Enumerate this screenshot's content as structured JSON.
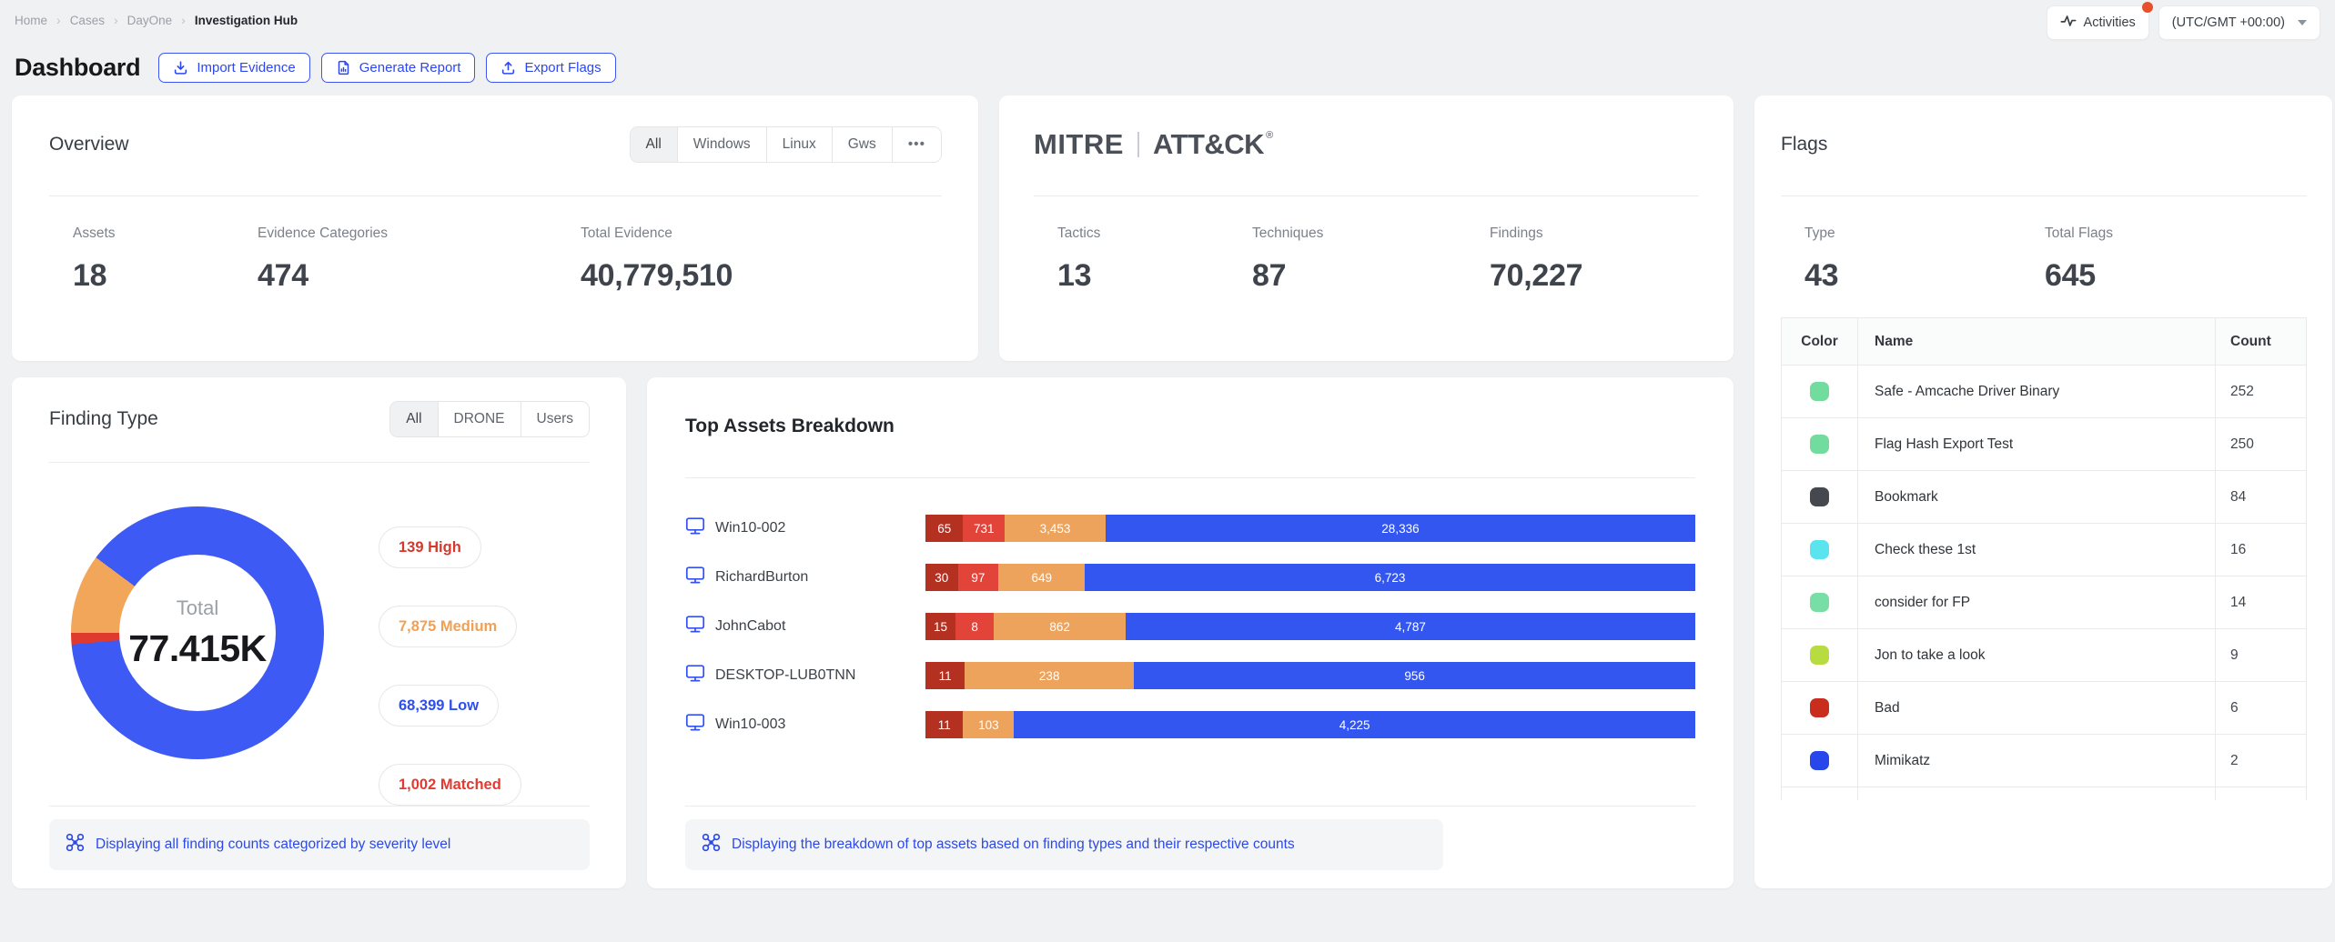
{
  "breadcrumb": {
    "separator": "›",
    "items": [
      "Home",
      "Cases",
      "DayOne"
    ],
    "current": "Investigation Hub"
  },
  "topbar": {
    "activities": "Activities",
    "timezone": "(UTC/GMT +00:00)"
  },
  "header": {
    "title": "Dashboard",
    "actions": [
      {
        "id": "import-evidence",
        "icon": "import",
        "label": "Import Evidence"
      },
      {
        "id": "generate-report",
        "icon": "report",
        "label": "Generate Report"
      },
      {
        "id": "export-flags",
        "icon": "export",
        "label": "Export Flags"
      }
    ]
  },
  "colors": {
    "accent": "#3350f0",
    "page_bg": "#f0f1f3",
    "bar_blue": "#3356f0",
    "bar_orange": "#eda35b",
    "bar_red": "#e2443a",
    "bar_dark_red": "#b43122",
    "donut_blue": "#3d5af5",
    "donut_orange": "#f2a65a",
    "donut_red": "#e03a2f"
  },
  "overview": {
    "title": "Overview",
    "tabs": [
      "All",
      "Windows",
      "Linux",
      "Gws",
      "•••"
    ],
    "active_tab": "All",
    "stats": [
      {
        "label": "Assets",
        "value": "18"
      },
      {
        "label": "Evidence Categories",
        "value": "474"
      },
      {
        "label": "Total Evidence",
        "value": "40,779,510"
      }
    ]
  },
  "mitre": {
    "logo_left": "MITRE",
    "logo_right": "ATT&CK",
    "reg_mark": "®",
    "stats": [
      {
        "label": "Tactics",
        "value": "13"
      },
      {
        "label": "Techniques",
        "value": "87"
      },
      {
        "label": "Findings",
        "value": "70,227"
      }
    ]
  },
  "flags": {
    "title": "Flags",
    "stats": [
      {
        "label": "Type",
        "value": "43"
      },
      {
        "label": "Total Flags",
        "value": "645"
      }
    ],
    "table": {
      "columns": [
        "Color",
        "Name",
        "Count"
      ],
      "rows": [
        {
          "color": "#71dc9e",
          "name": "Safe - Amcache Driver Binary",
          "count": "252"
        },
        {
          "color": "#71dc9e",
          "name": "Flag Hash Export Test",
          "count": "250"
        },
        {
          "color": "#45484f",
          "name": "Bookmark",
          "count": "84"
        },
        {
          "color": "#59e4f0",
          "name": "Check these 1st",
          "count": "16"
        },
        {
          "color": "#77dea6",
          "name": "consider for FP",
          "count": "14"
        },
        {
          "color": "#b7db40",
          "name": "Jon to take a look",
          "count": "9"
        },
        {
          "color": "#c92d1e",
          "name": "Bad",
          "count": "6"
        },
        {
          "color": "#2746ec",
          "name": "Mimikatz",
          "count": "2"
        }
      ]
    }
  },
  "finding_type": {
    "title": "Finding Type",
    "tabs": [
      "All",
      "DRONE",
      "Users"
    ],
    "active_tab": "All",
    "donut": {
      "start_angle_deg": 270,
      "segments": [
        {
          "label": "Medium",
          "color": "#f2a65a",
          "sweep": 36.6
        },
        {
          "label": "Low",
          "color": "#3d5af5",
          "sweep": 318.05
        },
        {
          "label": "Matched",
          "color": "#e03a2f",
          "sweep": 4.66
        },
        {
          "label": "High",
          "color": "#e03a2f",
          "sweep": 0.69
        }
      ],
      "center_label": "Total",
      "center_value": "77.415K"
    },
    "legend": [
      {
        "text": "139 High",
        "color": "#d6382b"
      },
      {
        "text": "7,875 Medium",
        "color": "#f0a155"
      },
      {
        "text": "68,399 Low",
        "color": "#2d4ff0"
      },
      {
        "text": "1,002 Matched",
        "color": "#e23a31"
      }
    ],
    "footer": "Displaying all finding counts categorized by severity level"
  },
  "top_assets": {
    "title": "Top Assets Breakdown",
    "rows": [
      {
        "asset": "Win10-002",
        "segments": [
          {
            "text": "65",
            "pct": 4.9,
            "color": "bar_dark_red"
          },
          {
            "text": "731",
            "pct": 5.4,
            "color": "bar_red"
          },
          {
            "text": "3,453",
            "pct": 13.1,
            "color": "bar_orange"
          },
          {
            "text": "28,336",
            "pct": 76.6,
            "color": "bar_blue"
          }
        ]
      },
      {
        "asset": "RichardBurton",
        "segments": [
          {
            "text": "30",
            "pct": 4.2,
            "color": "bar_dark_red"
          },
          {
            "text": "97",
            "pct": 5.3,
            "color": "bar_red"
          },
          {
            "text": "649",
            "pct": 11.2,
            "color": "bar_orange"
          },
          {
            "text": "6,723",
            "pct": 79.3,
            "color": "bar_blue"
          }
        ]
      },
      {
        "asset": "JohnCabot",
        "segments": [
          {
            "text": "15",
            "pct": 3.9,
            "color": "bar_dark_red"
          },
          {
            "text": "8",
            "pct": 5.0,
            "color": "bar_red"
          },
          {
            "text": "862",
            "pct": 17.1,
            "color": "bar_orange"
          },
          {
            "text": "4,787",
            "pct": 74.0,
            "color": "bar_blue"
          }
        ]
      },
      {
        "asset": "DESKTOP-LUB0TNN",
        "segments": [
          {
            "text": "11",
            "pct": 5.1,
            "color": "bar_dark_red"
          },
          {
            "text": "238",
            "pct": 22.0,
            "color": "bar_orange"
          },
          {
            "text": "956",
            "pct": 72.9,
            "color": "bar_blue"
          }
        ]
      },
      {
        "asset": "Win10-003",
        "segments": [
          {
            "text": "11",
            "pct": 4.9,
            "color": "bar_dark_red"
          },
          {
            "text": "103",
            "pct": 6.6,
            "color": "bar_orange"
          },
          {
            "text": "4,225",
            "pct": 88.5,
            "color": "bar_blue"
          }
        ]
      }
    ],
    "footer": "Displaying the breakdown of top assets based on finding types and their respective counts"
  },
  "chart_data": [
    {
      "type": "pie",
      "title": "Finding Type",
      "categories": [
        "High",
        "Medium",
        "Low",
        "Matched"
      ],
      "values": [
        139,
        7875,
        68399,
        1002
      ],
      "colors": [
        "#e03a2f",
        "#f2a65a",
        "#3d5af5",
        "#e23a31"
      ],
      "center_label": "Total",
      "center_value": "77.415K",
      "legend_position": "right"
    },
    {
      "type": "bar",
      "title": "Top Assets Breakdown",
      "orientation": "horizontal",
      "stacked": true,
      "categories": [
        "Win10-002",
        "RichardBurton",
        "JohnCabot",
        "DESKTOP-LUB0TNN",
        "Win10-003"
      ],
      "series": [
        {
          "name": "dark_red",
          "color": "#b43122",
          "values": [
            65,
            30,
            15,
            11,
            11
          ]
        },
        {
          "name": "red",
          "color": "#e2443a",
          "values": [
            731,
            97,
            8,
            0,
            0
          ]
        },
        {
          "name": "orange",
          "color": "#eda35b",
          "values": [
            3453,
            649,
            862,
            238,
            103
          ]
        },
        {
          "name": "blue",
          "color": "#3356f0",
          "values": [
            28336,
            6723,
            4787,
            956,
            4225
          ]
        }
      ]
    }
  ]
}
